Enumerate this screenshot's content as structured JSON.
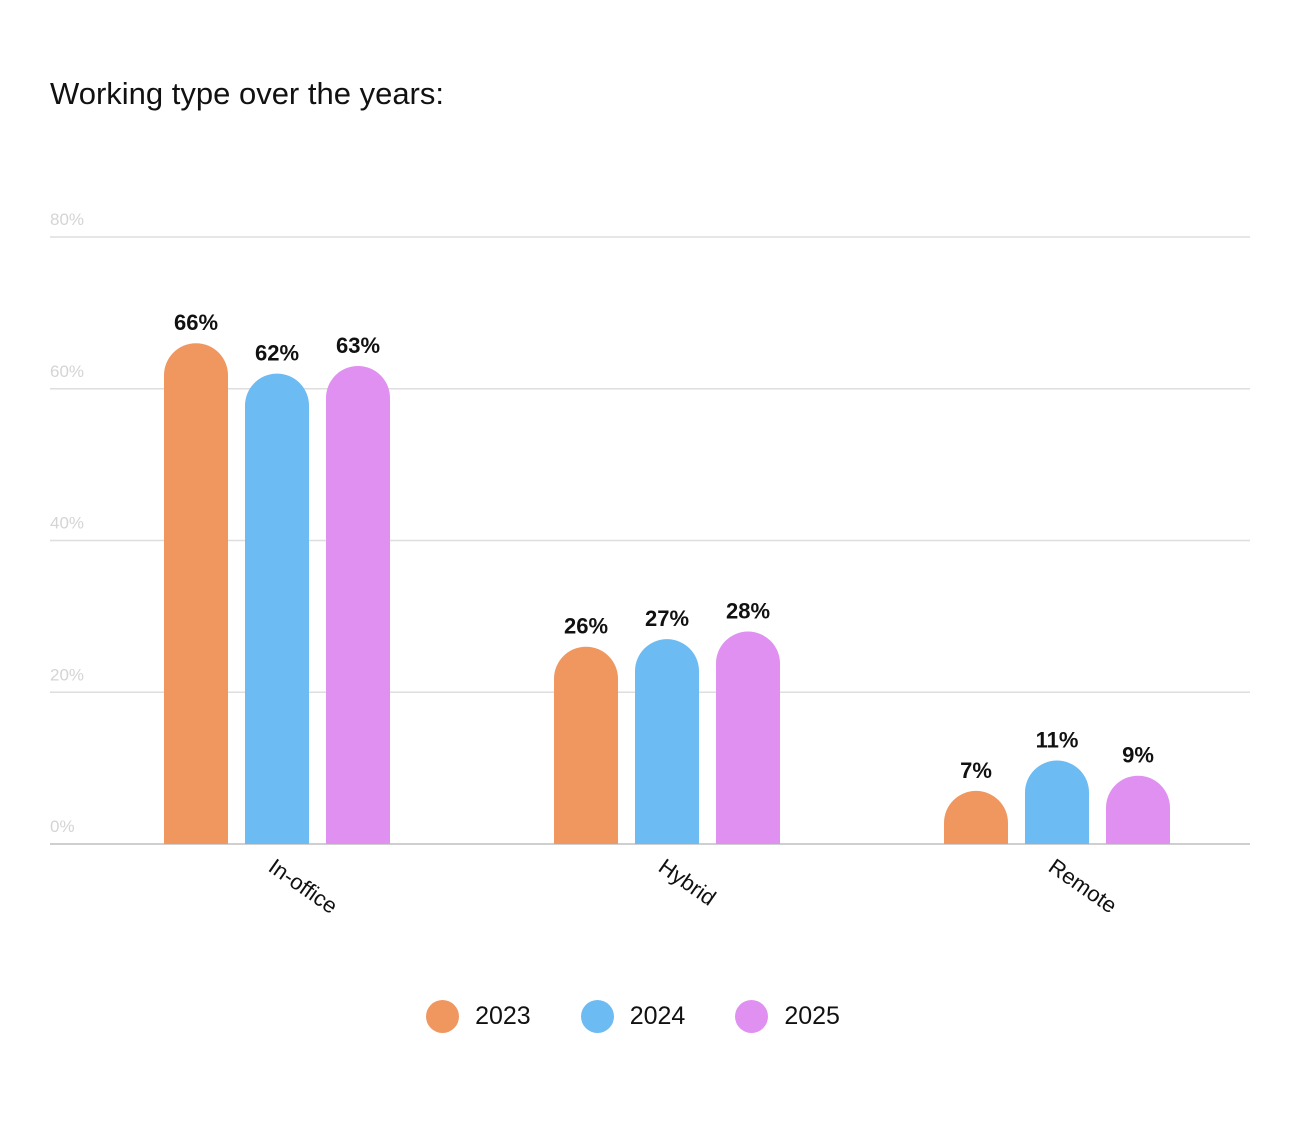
{
  "chart_data": {
    "type": "bar",
    "title": "Working type over the years:",
    "xlabel": "",
    "ylabel": "",
    "ylim": [
      0,
      80
    ],
    "yticks": [
      0,
      20,
      40,
      60,
      80
    ],
    "ytick_labels": [
      "0%",
      "20%",
      "40%",
      "60%",
      "80%"
    ],
    "grid": true,
    "legend_position": "bottom-center",
    "categories": [
      "In-office",
      "Hybrid",
      "Remote"
    ],
    "series": [
      {
        "name": "2023",
        "color": "#F0965F",
        "values": [
          66,
          26,
          7
        ],
        "labels": [
          "66%",
          "26%",
          "7%"
        ]
      },
      {
        "name": "2024",
        "color": "#6CBBF3",
        "values": [
          62,
          27,
          11
        ],
        "labels": [
          "62%",
          "27%",
          "11%"
        ]
      },
      {
        "name": "2025",
        "color": "#E090F0",
        "values": [
          63,
          28,
          9
        ],
        "labels": [
          "63%",
          "28%",
          "9%"
        ]
      }
    ]
  }
}
